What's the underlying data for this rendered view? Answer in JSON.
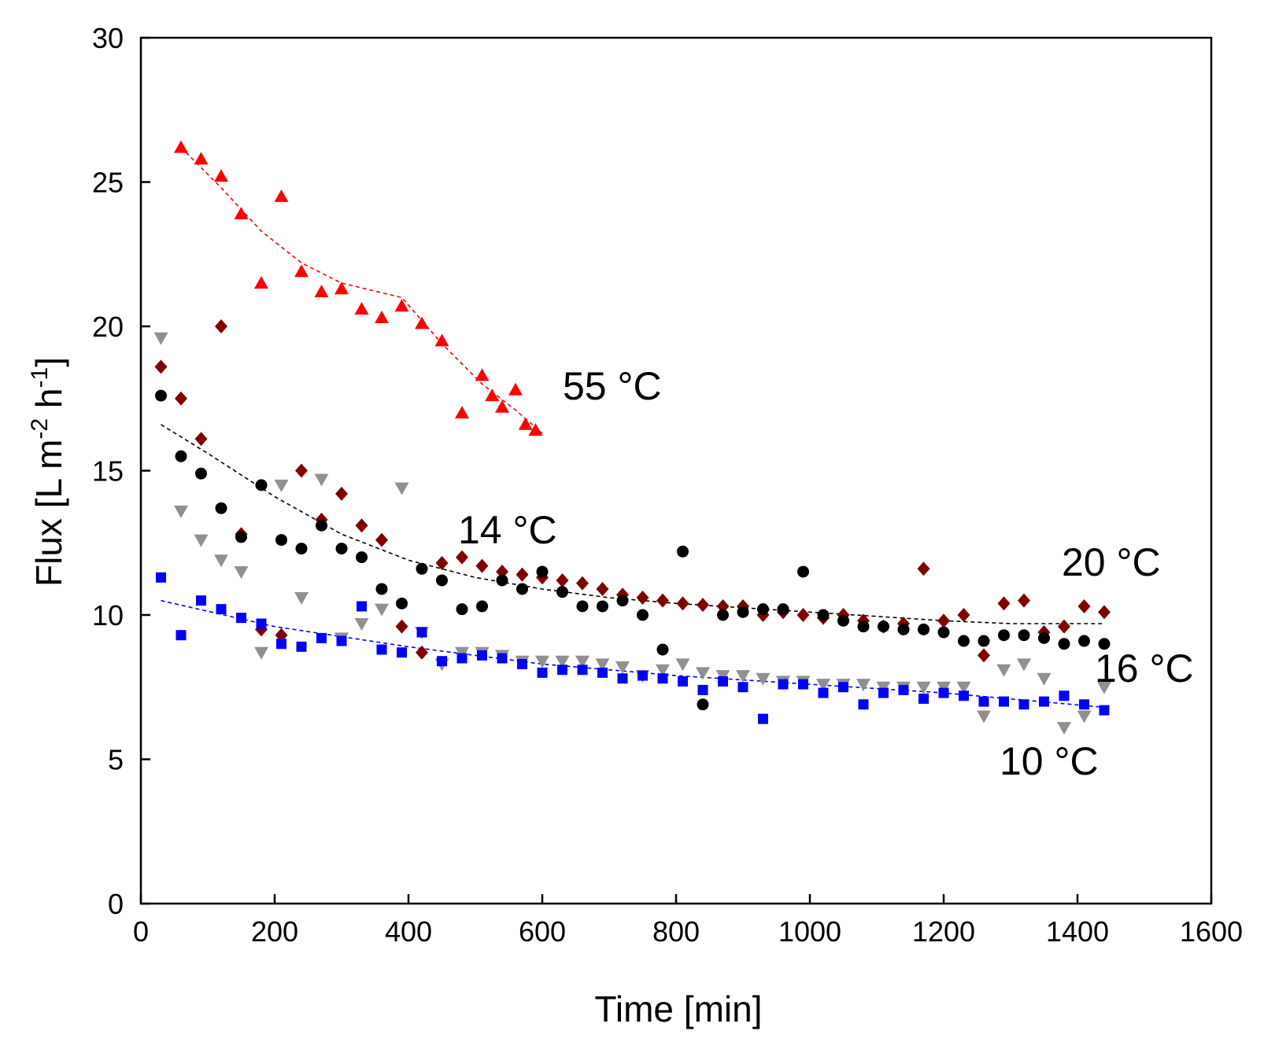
{
  "chart_data": {
    "type": "scatter",
    "title": "",
    "xlabel": "Time [min]",
    "ylabel": "Flux [L m-2 h-1]",
    "ylabel_parts": {
      "main": "Flux [L m",
      "sup1": "-2",
      "mid": " h",
      "sup2": "-1",
      "end": "]"
    },
    "xlim": [
      0,
      1600
    ],
    "ylim": [
      0,
      30
    ],
    "x_ticks": [
      "0",
      "200",
      "400",
      "600",
      "800",
      "1000",
      "1200",
      "1400",
      "1600"
    ],
    "y_ticks": [
      "0",
      "5",
      "10",
      "15",
      "20",
      "25",
      "30"
    ],
    "grid": false,
    "series": [
      {
        "name": "55 °C",
        "label": "55 °C",
        "color": "#ff0000",
        "marker": "triangle-up",
        "x": [
          60,
          90,
          120,
          150,
          180,
          210,
          240,
          270,
          300,
          330,
          360,
          390,
          420,
          450,
          480,
          510,
          525,
          540,
          560,
          575,
          590
        ],
        "y": [
          26.2,
          25.8,
          25.2,
          23.9,
          21.5,
          24.5,
          21.9,
          21.2,
          21.3,
          20.6,
          20.3,
          20.7,
          20.1,
          19.5,
          17.0,
          18.3,
          17.6,
          17.2,
          17.8,
          16.6,
          16.4
        ],
        "trend": {
          "x": [
            60,
            120,
            180,
            240,
            300,
            390,
            450,
            510,
            560,
            600
          ],
          "y": [
            26.2,
            24.8,
            23.3,
            22.2,
            21.5,
            21.0,
            19.4,
            18.0,
            17.1,
            16.3
          ]
        }
      },
      {
        "name": "14 °C",
        "label": "14 °C",
        "color": "#800000",
        "marker": "diamond",
        "x": [
          30,
          60,
          90,
          120,
          150,
          180,
          210,
          240,
          270,
          300,
          330,
          360,
          390,
          420,
          450,
          480,
          510,
          540,
          570,
          600,
          630,
          660,
          690,
          720,
          750,
          780,
          810,
          840,
          870,
          900,
          930,
          960,
          990,
          1020,
          1050,
          1080,
          1110,
          1140,
          1170,
          1200,
          1230,
          1260,
          1290,
          1320,
          1350,
          1380,
          1410,
          1440
        ],
        "y": [
          18.6,
          17.5,
          16.1,
          20.0,
          12.8,
          9.5,
          9.3,
          15.0,
          13.3,
          14.2,
          13.1,
          12.6,
          9.6,
          8.7,
          11.8,
          12.0,
          11.7,
          11.5,
          11.4,
          11.3,
          11.2,
          11.1,
          10.9,
          10.7,
          10.6,
          10.5,
          10.4,
          10.35,
          10.3,
          10.3,
          10.0,
          10.1,
          10.0,
          9.9,
          10.0,
          9.8,
          9.6,
          9.7,
          11.6,
          9.8,
          10.0,
          8.6,
          10.4,
          10.5,
          9.4,
          9.6,
          10.3,
          10.1
        ]
      },
      {
        "name": "20 °C",
        "label": "20 °C",
        "color": "#000000",
        "marker": "circle",
        "x": [
          30,
          60,
          90,
          120,
          150,
          180,
          210,
          240,
          270,
          300,
          330,
          360,
          390,
          420,
          450,
          480,
          510,
          540,
          570,
          600,
          630,
          660,
          690,
          720,
          750,
          780,
          810,
          840,
          870,
          900,
          930,
          960,
          990,
          1020,
          1050,
          1080,
          1110,
          1140,
          1170,
          1200,
          1230,
          1260,
          1290,
          1320,
          1350,
          1380,
          1410,
          1440
        ],
        "y": [
          17.6,
          15.5,
          14.9,
          13.7,
          12.7,
          14.5,
          12.6,
          12.3,
          13.1,
          12.3,
          12.0,
          10.9,
          10.4,
          11.6,
          11.2,
          10.2,
          10.3,
          11.2,
          10.9,
          11.5,
          10.8,
          10.3,
          10.3,
          10.5,
          10.0,
          8.8,
          12.2,
          6.9,
          10.0,
          10.1,
          10.2,
          10.2,
          11.5,
          10.0,
          9.8,
          9.6,
          9.6,
          9.5,
          9.5,
          9.4,
          9.1,
          9.1,
          9.3,
          9.3,
          9.2,
          9.0,
          9.1,
          9.0
        ],
        "trend": {
          "x": [
            30,
            100,
            200,
            300,
            400,
            500,
            600,
            700,
            800,
            900,
            1000,
            1100,
            1200,
            1300,
            1440
          ],
          "y": [
            16.6,
            15.6,
            14.1,
            12.8,
            11.9,
            11.3,
            10.9,
            10.6,
            10.4,
            10.25,
            10.1,
            9.95,
            9.8,
            9.7,
            9.7
          ]
        }
      },
      {
        "name": "16 °C",
        "label": "16 °C",
        "color": "#909090",
        "marker": "triangle-down",
        "x": [
          30,
          60,
          90,
          120,
          150,
          180,
          210,
          240,
          270,
          300,
          330,
          360,
          390,
          420,
          450,
          480,
          510,
          540,
          570,
          600,
          630,
          660,
          690,
          720,
          750,
          780,
          810,
          840,
          870,
          900,
          930,
          960,
          990,
          1020,
          1050,
          1080,
          1110,
          1140,
          1170,
          1200,
          1230,
          1260,
          1290,
          1320,
          1350,
          1380,
          1410,
          1440
        ],
        "y": [
          19.6,
          13.6,
          12.6,
          11.9,
          11.5,
          8.7,
          14.5,
          10.6,
          14.7,
          9.2,
          9.7,
          10.2,
          14.4,
          9.4,
          8.3,
          8.7,
          8.7,
          8.6,
          8.4,
          8.4,
          8.4,
          8.4,
          8.3,
          8.2,
          7.9,
          8.1,
          8.3,
          8.0,
          7.9,
          7.9,
          7.8,
          7.7,
          7.7,
          7.6,
          7.6,
          7.6,
          7.5,
          7.5,
          7.5,
          7.5,
          7.5,
          6.5,
          8.1,
          8.3,
          7.8,
          6.1,
          6.5,
          7.5
        ]
      },
      {
        "name": "10 °C",
        "label": "10 °C",
        "color": "#0000ff",
        "marker": "square",
        "x": [
          30,
          60,
          90,
          120,
          150,
          180,
          210,
          240,
          270,
          300,
          330,
          360,
          390,
          420,
          450,
          480,
          510,
          540,
          570,
          600,
          630,
          660,
          690,
          720,
          750,
          780,
          810,
          840,
          870,
          900,
          930,
          960,
          990,
          1020,
          1050,
          1080,
          1110,
          1140,
          1170,
          1200,
          1230,
          1260,
          1290,
          1320,
          1350,
          1380,
          1410,
          1440
        ],
        "y": [
          11.3,
          9.3,
          10.5,
          10.2,
          9.9,
          9.7,
          9.0,
          8.9,
          9.2,
          9.1,
          10.3,
          8.8,
          8.7,
          9.4,
          8.4,
          8.5,
          8.6,
          8.5,
          8.3,
          8.0,
          8.1,
          8.1,
          8.0,
          7.8,
          7.9,
          7.8,
          7.7,
          7.4,
          7.7,
          7.5,
          6.4,
          7.6,
          7.6,
          7.3,
          7.5,
          6.9,
          7.3,
          7.4,
          7.1,
          7.3,
          7.2,
          7.0,
          7.0,
          6.9,
          7.0,
          7.2,
          6.9,
          6.7
        ],
        "trend": {
          "x": [
            30,
            200,
            400,
            600,
            800,
            1000,
            1200,
            1440
          ],
          "y": [
            10.5,
            9.6,
            8.9,
            8.3,
            7.9,
            7.6,
            7.3,
            6.8
          ]
        }
      }
    ]
  }
}
